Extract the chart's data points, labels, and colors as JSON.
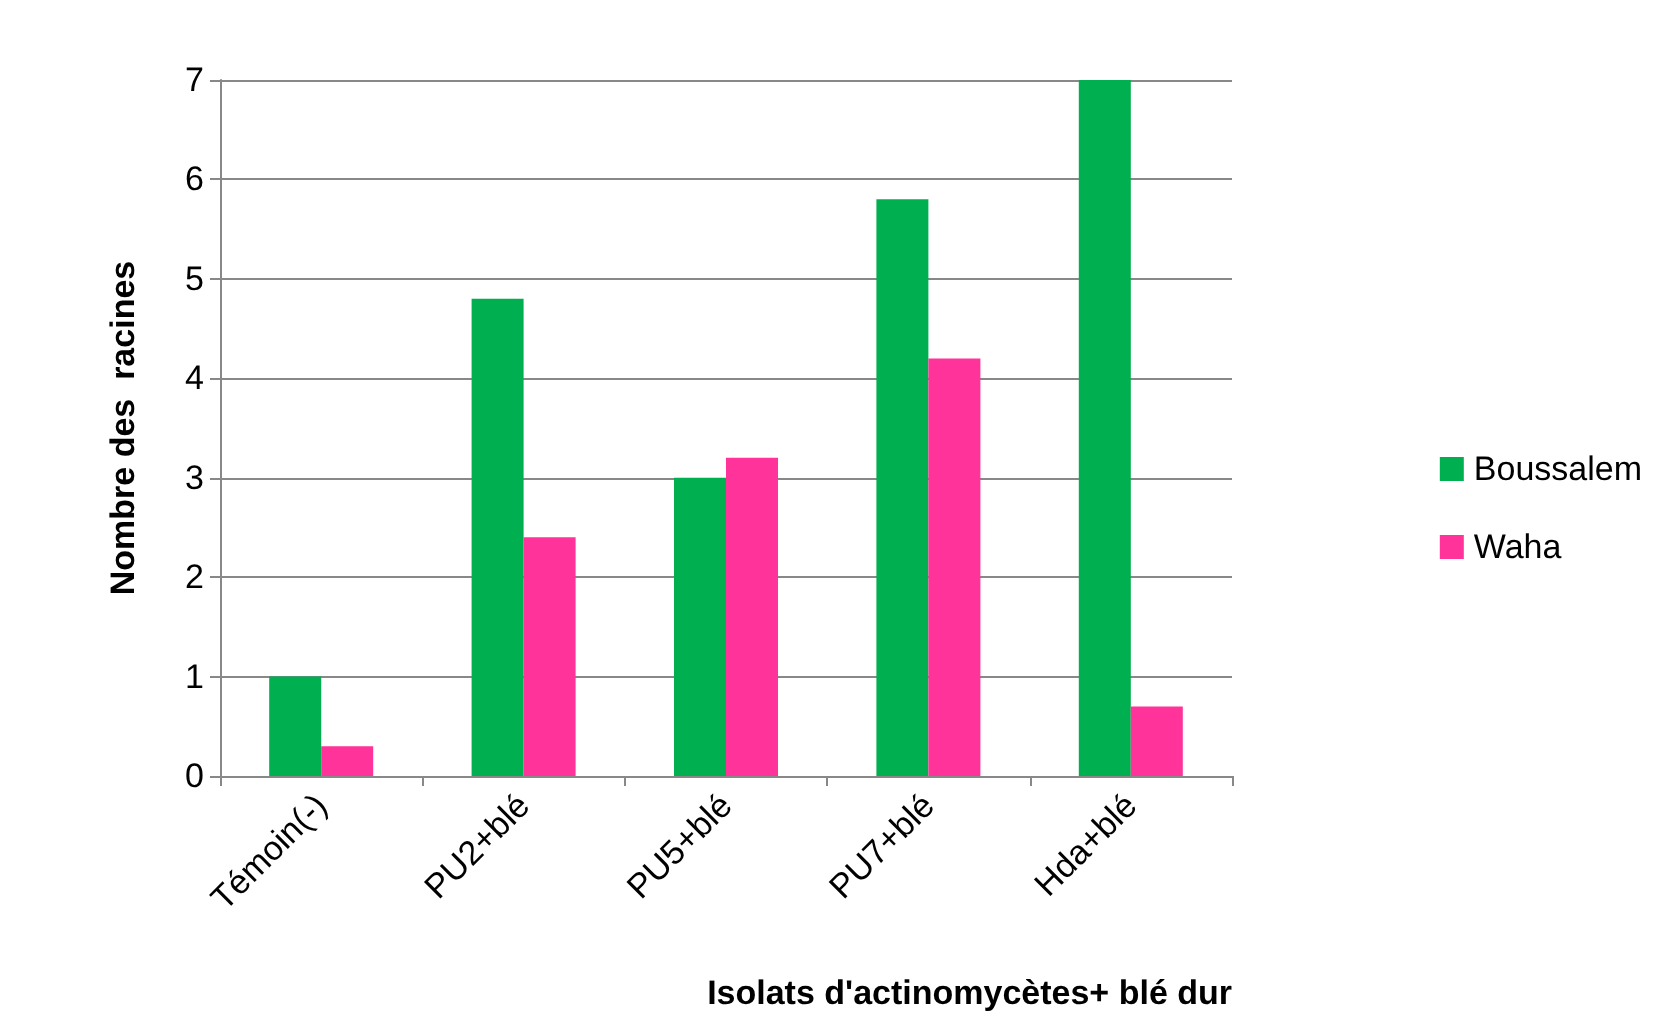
{
  "chart_data": {
    "type": "bar",
    "xlabel": "Isolats d'actinomycètes+ blé dur",
    "ylabel": "Nombre des  racines",
    "categories": [
      "Témoin(-)",
      "PU2+blé",
      "PU5+blé",
      "PU7+blé",
      "Hda+blé"
    ],
    "series": [
      {
        "name": "Boussalem",
        "color": "#00b050",
        "values": [
          1,
          4.8,
          3,
          5.8,
          7
        ]
      },
      {
        "name": "Waha",
        "color": "#ff3399",
        "values": [
          0.3,
          2.4,
          3.2,
          4.2,
          0.7
        ]
      }
    ],
    "ylim": [
      0,
      7
    ],
    "yticks": [
      0,
      1,
      2,
      3,
      4,
      5,
      6,
      7
    ],
    "grid": "y",
    "legend": "right"
  }
}
